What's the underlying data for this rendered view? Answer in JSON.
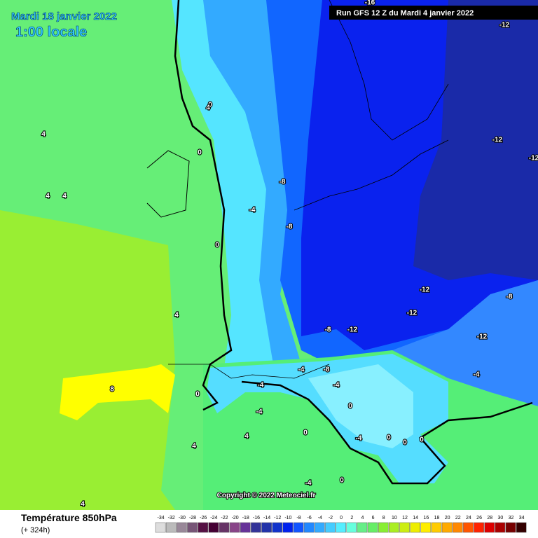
{
  "header": {
    "date": "Mardi 18 janvier 2022",
    "time": "1:00 locale",
    "run": "Run GFS 12 Z du Mardi 4 janvier 2022"
  },
  "footer": {
    "title": "Température 850hPa",
    "lead": "(+ 324h)",
    "copyright": "Copyright © 2022 Meteociel.fr"
  },
  "legend": {
    "labels": [
      -34,
      -32,
      -30,
      -28,
      -26,
      -24,
      -22,
      -20,
      -18,
      -16,
      -14,
      -12,
      -10,
      -8,
      -6,
      -4,
      -2,
      0,
      2,
      4,
      6,
      8,
      10,
      12,
      14,
      16,
      18,
      20,
      22,
      24,
      26,
      28,
      30,
      32,
      34
    ]
  },
  "map": {
    "contour_labels": [
      -16,
      -12,
      -12,
      -12,
      -12,
      -8,
      -4,
      -8,
      -12,
      -12,
      -8,
      -12,
      -8,
      -8,
      -4,
      -4,
      -4,
      -4,
      -4,
      -4,
      -4,
      0,
      0,
      0,
      0,
      0,
      0,
      0,
      0,
      0,
      0,
      4,
      4,
      4,
      4,
      4,
      4,
      4,
      4,
      8
    ]
  }
}
